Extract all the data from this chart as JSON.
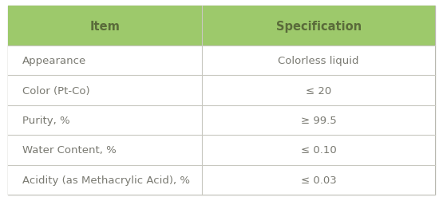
{
  "headers": [
    "Item",
    "Specification"
  ],
  "rows": [
    [
      "Appearance",
      "Colorless liquid"
    ],
    [
      "Color (Pt-Co)",
      "≤ 20"
    ],
    [
      "Purity, %",
      "≥ 99.5"
    ],
    [
      "Water Content, %",
      "≤ 0.10"
    ],
    [
      "Acidity (as Methacrylic Acid), %",
      "≤ 0.03"
    ]
  ],
  "header_bg_color": "#9dc96b",
  "header_text_color": "#5a6b3a",
  "row_bg_color": "#ffffff",
  "row_text_color": "#7a7a72",
  "border_color": "#c8c8c0",
  "outer_border_color": "#b8b8b0",
  "col_split": 0.455,
  "header_fontsize": 10.5,
  "row_fontsize": 9.5,
  "fig_width": 5.55,
  "fig_height": 2.53,
  "dpi": 100
}
